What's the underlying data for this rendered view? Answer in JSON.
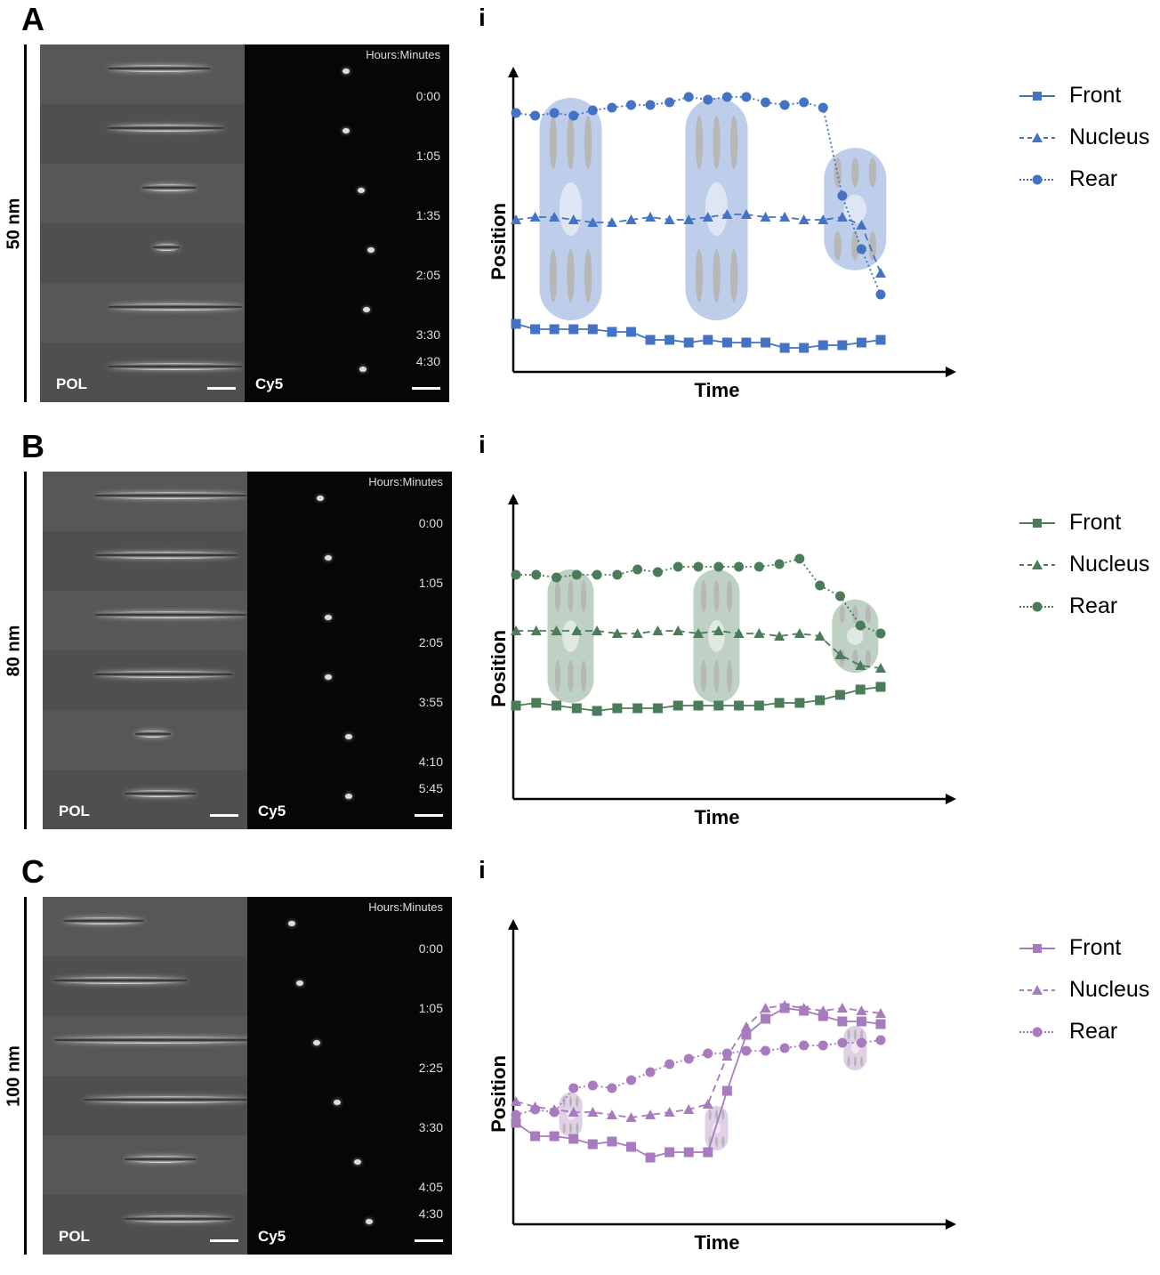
{
  "figure": {
    "panels": [
      {
        "letter": "A",
        "row_label": "50 nm",
        "sub_letter": "i",
        "color": "#4472C4",
        "microscopy": {
          "header": "Hours:Minutes",
          "channels": [
            "POL",
            "Cy5"
          ],
          "times": [
            "0:00",
            "1:05",
            "1:35",
            "2:05",
            "3:30",
            "4:30"
          ]
        },
        "legend": [
          "Front",
          "Nucleus",
          "Rear"
        ]
      },
      {
        "letter": "B",
        "row_label": "80 nm",
        "sub_letter": "i",
        "color": "#4A7C59",
        "microscopy": {
          "header": "Hours:Minutes",
          "channels": [
            "POL",
            "Cy5"
          ],
          "times": [
            "0:00",
            "1:05",
            "2:05",
            "3:55",
            "4:10",
            "5:45"
          ]
        },
        "legend": [
          "Front",
          "Nucleus",
          "Rear"
        ]
      },
      {
        "letter": "C",
        "row_label": "100 nm",
        "sub_letter": "i",
        "color": "#A77BBD",
        "microscopy": {
          "header": "Hours:Minutes",
          "channels": [
            "POL",
            "Cy5"
          ],
          "times": [
            "0:00",
            "1:05",
            "2:25",
            "3:30",
            "4:05",
            "4:30"
          ]
        },
        "legend": [
          "Front",
          "Nucleus",
          "Rear"
        ]
      }
    ]
  },
  "chart_data": [
    {
      "type": "line",
      "title": "A i (50 nm)",
      "xlabel": "Time",
      "ylabel": "Position",
      "grid": false,
      "legend_position": "right",
      "x": [
        0,
        1,
        2,
        3,
        4,
        5,
        6,
        7,
        8,
        9,
        10,
        11,
        12,
        13,
        14,
        15,
        16,
        17,
        18,
        19
      ],
      "series": [
        {
          "name": "Rear",
          "marker": "circle",
          "style": "dotted",
          "values": [
            91,
            90,
            91,
            90,
            92,
            93,
            94,
            94,
            95,
            97,
            96,
            97,
            97,
            95,
            94,
            95,
            93,
            60,
            40,
            23
          ]
        },
        {
          "name": "Nucleus",
          "marker": "triangle",
          "style": "dashed",
          "values": [
            51,
            52,
            52,
            51,
            50,
            50,
            51,
            52,
            51,
            51,
            52,
            53,
            53,
            52,
            52,
            51,
            51,
            52,
            49,
            31
          ]
        },
        {
          "name": "Front",
          "marker": "square",
          "style": "solid",
          "values": [
            12,
            10,
            10,
            10,
            10,
            9,
            9,
            6,
            6,
            5,
            6,
            5,
            5,
            5,
            3,
            3,
            4,
            4,
            5,
            6
          ]
        }
      ]
    },
    {
      "type": "line",
      "title": "B i (80 nm)",
      "xlabel": "Time",
      "ylabel": "Position",
      "grid": false,
      "legend_position": "right",
      "x": [
        0,
        1,
        2,
        3,
        4,
        5,
        6,
        7,
        8,
        9,
        10,
        11,
        12,
        13,
        14,
        15,
        16,
        17,
        18
      ],
      "series": [
        {
          "name": "Rear",
          "marker": "circle",
          "style": "dotted",
          "values": [
            78,
            78,
            77,
            78,
            78,
            78,
            80,
            79,
            81,
            81,
            81,
            81,
            81,
            82,
            84,
            74,
            70,
            59,
            56
          ]
        },
        {
          "name": "Nucleus",
          "marker": "triangle",
          "style": "dashed",
          "values": [
            57,
            57,
            57,
            57,
            57,
            56,
            56,
            57,
            57,
            56,
            57,
            56,
            56,
            55,
            56,
            55,
            48,
            44,
            43
          ]
        },
        {
          "name": "Front",
          "marker": "square",
          "style": "solid",
          "values": [
            29,
            30,
            29,
            28,
            27,
            28,
            28,
            28,
            29,
            29,
            29,
            29,
            29,
            30,
            30,
            31,
            33,
            35,
            36
          ]
        }
      ]
    },
    {
      "type": "line",
      "title": "C i (100 nm)",
      "xlabel": "Time",
      "ylabel": "Position",
      "grid": false,
      "legend_position": "right",
      "x": [
        0,
        1,
        2,
        3,
        4,
        5,
        6,
        7,
        8,
        9,
        10,
        11,
        12,
        13,
        14,
        15,
        16,
        17,
        18,
        19
      ],
      "series": [
        {
          "name": "Rear",
          "marker": "circle",
          "style": "dotted",
          "values": [
            35,
            37,
            36,
            45,
            46,
            45,
            48,
            51,
            54,
            56,
            58,
            58,
            59,
            59,
            60,
            61,
            61,
            62,
            62,
            63
          ]
        },
        {
          "name": "Nucleus",
          "marker": "triangle",
          "style": "dashed",
          "values": [
            40,
            38,
            37,
            36,
            36,
            35,
            34,
            35,
            36,
            37,
            39,
            57,
            68,
            75,
            76,
            75,
            74,
            75,
            74,
            73
          ]
        },
        {
          "name": "Front",
          "marker": "square",
          "style": "solid",
          "values": [
            32,
            27,
            27,
            26,
            24,
            25,
            23,
            19,
            21,
            21,
            21,
            44,
            65,
            71,
            75,
            74,
            72,
            70,
            70,
            69
          ]
        }
      ]
    }
  ]
}
